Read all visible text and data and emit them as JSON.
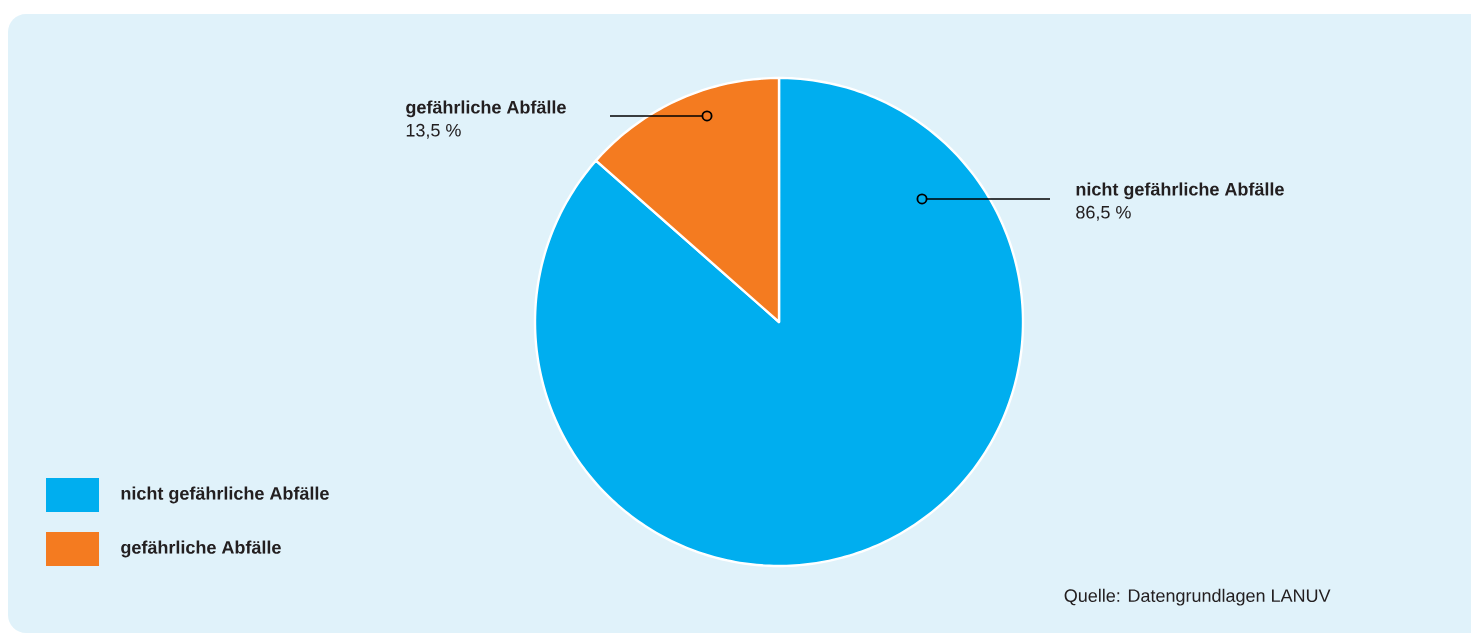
{
  "chart_data": {
    "type": "pie",
    "categories": [
      "nicht gefährliche Abfälle",
      "gefährliche Abfälle"
    ],
    "values": [
      86.5,
      13.5
    ],
    "colors": [
      "#00aeef",
      "#f47b20"
    ],
    "value_labels": [
      "86,5 %",
      "13,5 %"
    ],
    "legend": "bottom left",
    "annotations": [
      "Quelle: Datengrundlagen LANUV"
    ]
  }
}
